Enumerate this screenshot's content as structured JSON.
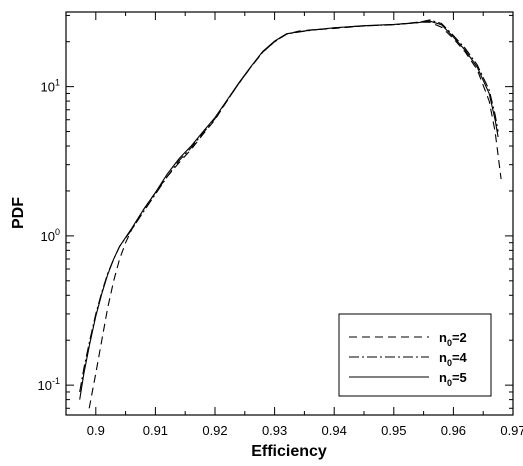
{
  "chart_data": {
    "type": "line",
    "title": "",
    "xlabel": "Efficiency",
    "ylabel": "PDF",
    "xlim": [
      0.895,
      0.97
    ],
    "ylim_log10": [
      -1.2,
      1.5
    ],
    "y_scale": "log",
    "grid": false,
    "legend_position": "bottom-right",
    "x_ticks": [
      {
        "value": 0.9,
        "label": "0.9"
      },
      {
        "value": 0.91,
        "label": "0.91"
      },
      {
        "value": 0.92,
        "label": "0.92"
      },
      {
        "value": 0.93,
        "label": "0.93"
      },
      {
        "value": 0.94,
        "label": "0.94"
      },
      {
        "value": 0.95,
        "label": "0.95"
      },
      {
        "value": 0.96,
        "label": "0.96"
      },
      {
        "value": 0.97,
        "label": "0.97"
      }
    ],
    "y_ticks": [
      {
        "value": 0.1,
        "base": "10",
        "exp": "-1"
      },
      {
        "value": 1,
        "base": "10",
        "exp": "0"
      },
      {
        "value": 10,
        "base": "10",
        "exp": "1"
      }
    ],
    "series": [
      {
        "legend_base": "n",
        "legend_sub": "0",
        "legend_rest": "=2",
        "dash": "8,5",
        "points": [
          [
            0.8989,
            0.07
          ],
          [
            0.9,
            0.12
          ],
          [
            0.901,
            0.2
          ],
          [
            0.902,
            0.33
          ],
          [
            0.903,
            0.5
          ],
          [
            0.904,
            0.7
          ],
          [
            0.905,
            0.9
          ],
          [
            0.906,
            1.1
          ],
          [
            0.908,
            1.5
          ],
          [
            0.91,
            1.95
          ],
          [
            0.912,
            2.5
          ],
          [
            0.914,
            3.1
          ],
          [
            0.916,
            3.8
          ],
          [
            0.918,
            4.8
          ],
          [
            0.92,
            6
          ],
          [
            0.922,
            8
          ],
          [
            0.924,
            10.5
          ],
          [
            0.926,
            13.5
          ],
          [
            0.928,
            17
          ],
          [
            0.93,
            20
          ],
          [
            0.932,
            22.5
          ],
          [
            0.934,
            23.5
          ],
          [
            0.936,
            24
          ],
          [
            0.94,
            24.5
          ],
          [
            0.945,
            25.5
          ],
          [
            0.95,
            26
          ],
          [
            0.954,
            27
          ],
          [
            0.956,
            27
          ],
          [
            0.958,
            25
          ],
          [
            0.96,
            21
          ],
          [
            0.962,
            17
          ],
          [
            0.964,
            13
          ],
          [
            0.966,
            8
          ],
          [
            0.967,
            5
          ],
          [
            0.968,
            2.4
          ]
        ]
      },
      {
        "legend_base": "n",
        "legend_sub": "0",
        "legend_rest": "=4",
        "dash": "10,3,2,3",
        "points": [
          [
            0.8973,
            0.09
          ],
          [
            0.898,
            0.13
          ],
          [
            0.899,
            0.2
          ],
          [
            0.9,
            0.3
          ],
          [
            0.901,
            0.42
          ],
          [
            0.902,
            0.56
          ],
          [
            0.903,
            0.7
          ],
          [
            0.904,
            0.85
          ],
          [
            0.906,
            1.1
          ],
          [
            0.908,
            1.45
          ],
          [
            0.91,
            1.9
          ],
          [
            0.912,
            2.5
          ],
          [
            0.914,
            3.2
          ],
          [
            0.916,
            3.9
          ],
          [
            0.918,
            4.9
          ],
          [
            0.92,
            6.1
          ],
          [
            0.922,
            8
          ],
          [
            0.924,
            10.5
          ],
          [
            0.926,
            13.5
          ],
          [
            0.928,
            17
          ],
          [
            0.93,
            20
          ],
          [
            0.932,
            22.5
          ],
          [
            0.934,
            23.2
          ],
          [
            0.936,
            23.8
          ],
          [
            0.94,
            24.8
          ],
          [
            0.945,
            25.5
          ],
          [
            0.95,
            26
          ],
          [
            0.954,
            26.8
          ],
          [
            0.956,
            28
          ],
          [
            0.958,
            26.5
          ],
          [
            0.96,
            22
          ],
          [
            0.962,
            18
          ],
          [
            0.964,
            14
          ],
          [
            0.966,
            9.5
          ],
          [
            0.967,
            6.5
          ],
          [
            0.9675,
            5
          ]
        ]
      },
      {
        "legend_base": "n",
        "legend_sub": "0",
        "legend_rest": "=5",
        "dash": "",
        "points": [
          [
            0.8973,
            0.08
          ],
          [
            0.898,
            0.12
          ],
          [
            0.899,
            0.19
          ],
          [
            0.9,
            0.29
          ],
          [
            0.901,
            0.41
          ],
          [
            0.902,
            0.55
          ],
          [
            0.903,
            0.7
          ],
          [
            0.904,
            0.85
          ],
          [
            0.906,
            1.12
          ],
          [
            0.908,
            1.5
          ],
          [
            0.91,
            1.95
          ],
          [
            0.912,
            2.6
          ],
          [
            0.914,
            3.3
          ],
          [
            0.916,
            4
          ],
          [
            0.918,
            5
          ],
          [
            0.92,
            6.2
          ],
          [
            0.922,
            8.1
          ],
          [
            0.924,
            10.6
          ],
          [
            0.926,
            13.6
          ],
          [
            0.928,
            17.2
          ],
          [
            0.93,
            20.2
          ],
          [
            0.932,
            22.6
          ],
          [
            0.934,
            23.3
          ],
          [
            0.936,
            23.9
          ],
          [
            0.94,
            24.8
          ],
          [
            0.945,
            25.6
          ],
          [
            0.95,
            26.1
          ],
          [
            0.954,
            26.8
          ],
          [
            0.956,
            27.5
          ],
          [
            0.958,
            26
          ],
          [
            0.96,
            21.5
          ],
          [
            0.962,
            17.5
          ],
          [
            0.964,
            13.5
          ],
          [
            0.966,
            9
          ],
          [
            0.967,
            6
          ],
          [
            0.9675,
            4.6
          ]
        ]
      }
    ]
  }
}
